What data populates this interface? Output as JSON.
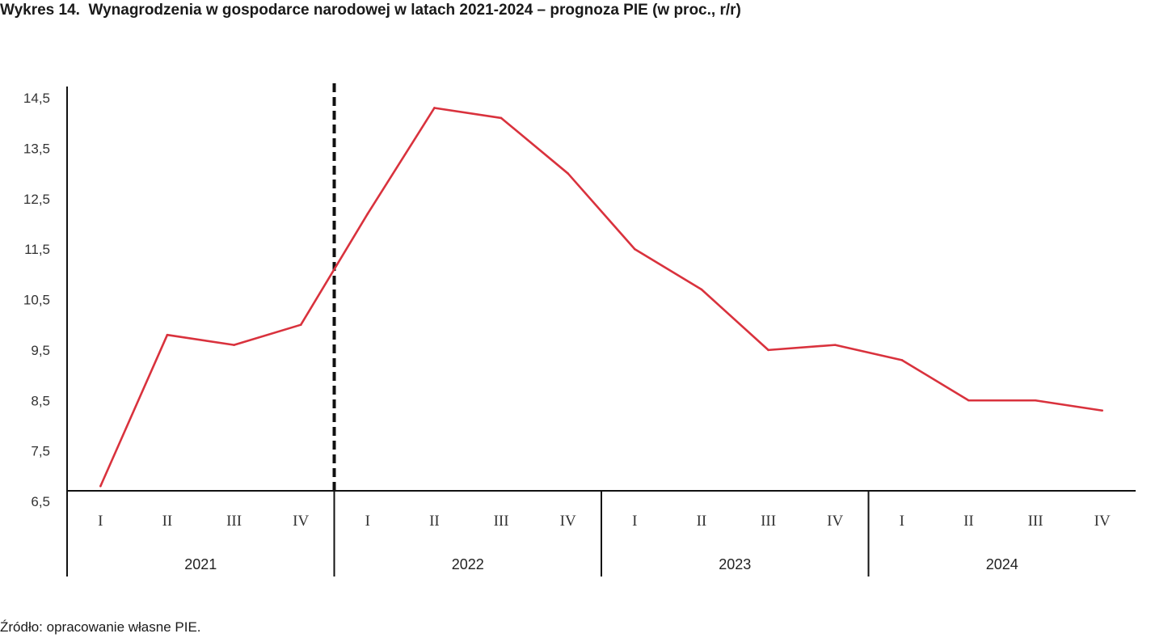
{
  "chart_data": {
    "type": "line",
    "title": "Wykres 14.  Wynagrodzenia w gospodarce narodowej w latach 2021-2024 – prognoza PIE (w proc., r/r)",
    "source": "Źródło: opracowanie własne PIE.",
    "xlabel": "",
    "ylabel": "",
    "ylim": [
      6.5,
      14.5
    ],
    "yticks": [
      "6,5",
      "7,5",
      "8,5",
      "9,5",
      "10,5",
      "11,5",
      "12,5",
      "13,5",
      "14,5"
    ],
    "ytick_values": [
      6.5,
      7.5,
      8.5,
      9.5,
      10.5,
      11.5,
      12.5,
      13.5,
      14.5
    ],
    "years": [
      "2021",
      "2022",
      "2023",
      "2024"
    ],
    "quarters": [
      "I",
      "II",
      "III",
      "IV"
    ],
    "forecast_divider": "between 2021 IV and 2022 I",
    "series": [
      {
        "name": "Wynagrodzenia r/r",
        "color": "#d9323d",
        "values": [
          6.8,
          9.8,
          9.6,
          10.0,
          12.2,
          14.3,
          14.1,
          13.0,
          11.5,
          10.7,
          9.5,
          9.6,
          9.3,
          8.5,
          8.5,
          8.3
        ]
      }
    ],
    "grid": false,
    "legend": "none"
  }
}
